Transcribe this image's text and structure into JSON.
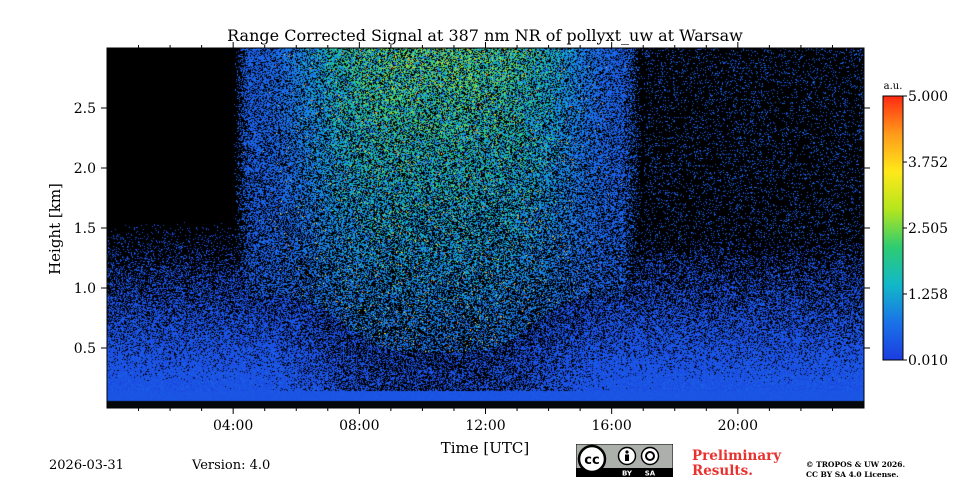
{
  "chart_data": {
    "type": "heatmap",
    "title": "Range Corrected Signal at 387 nm NR of pollyxt_uw at Warsaw",
    "xlabel": "Time [UTC]",
    "ylabel": "Height [km]",
    "xlim": [
      0,
      24
    ],
    "ylim": [
      0,
      3.0
    ],
    "x_ticks": [
      {
        "value": 4,
        "label": "04:00"
      },
      {
        "value": 8,
        "label": "08:00"
      },
      {
        "value": 12,
        "label": "12:00"
      },
      {
        "value": 16,
        "label": "16:00"
      },
      {
        "value": 20,
        "label": "20:00"
      }
    ],
    "y_ticks": [
      {
        "value": 0.5,
        "label": "0.5"
      },
      {
        "value": 1.0,
        "label": "1.0"
      },
      {
        "value": 1.5,
        "label": "1.5"
      },
      {
        "value": 2.0,
        "label": "2.0"
      },
      {
        "value": 2.5,
        "label": "2.5"
      }
    ],
    "colorbar": {
      "unit": "a.u.",
      "min": 0.01,
      "max": 5.0,
      "ticks": [
        {
          "value": 0.01,
          "label": "0.010"
        },
        {
          "value": 1.258,
          "label": "1.258"
        },
        {
          "value": 2.505,
          "label": "2.505"
        },
        {
          "value": 3.752,
          "label": "3.752"
        },
        {
          "value": 5.0,
          "label": "5.000"
        }
      ],
      "colors": [
        "#1b3ce0",
        "#1a73e8",
        "#12b8c9",
        "#2ecc71",
        "#b5e61d",
        "#ffe81a",
        "#ff9a1a",
        "#ff2a12"
      ]
    },
    "features": {
      "cloud_free_block_hours": [
        0,
        4
      ],
      "elevated_signal_hours": [
        4,
        17
      ],
      "mixing_layer_top_km": 1.7,
      "dense_near_ground_km": 0.15
    }
  },
  "footer": {
    "date": "2026-03-31",
    "version": "Version: 4.0",
    "preliminary_line1": "Preliminary",
    "preliminary_line2": "Results.",
    "copyright_line1": "© TROPOS & UW 2026.",
    "copyright_line2": "CC BY SA 4.0 License.",
    "cc_text": "cc",
    "by_text": "BY",
    "sa_text": "SA"
  }
}
